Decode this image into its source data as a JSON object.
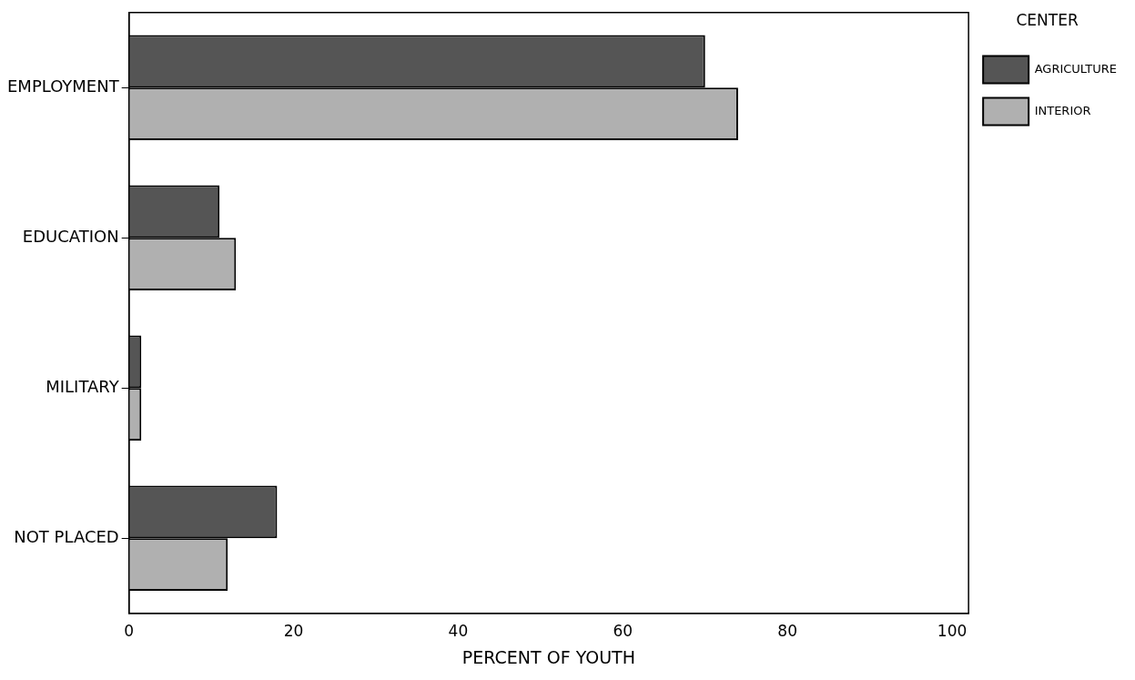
{
  "chart_data": {
    "type": "bar",
    "orientation": "horizontal",
    "xlabel": "PERCENT OF YOUTH",
    "legend_title": "CENTER",
    "legend": "top right",
    "grid": false,
    "categories": [
      "EMPLOYMENT",
      "EDUCATION",
      "MILITARY",
      "NOT PLACED"
    ],
    "series": [
      {
        "name": "AGRICULTURE",
        "color": "#555555",
        "values": [
          70,
          11,
          1.5,
          18
        ]
      },
      {
        "name": "INTERIOR",
        "color": "#b0b0b0",
        "values": [
          74,
          13,
          1.5,
          12
        ]
      }
    ],
    "xlim": [
      0,
      102
    ],
    "xticks": [
      0,
      20,
      40,
      60,
      80,
      100
    ]
  }
}
